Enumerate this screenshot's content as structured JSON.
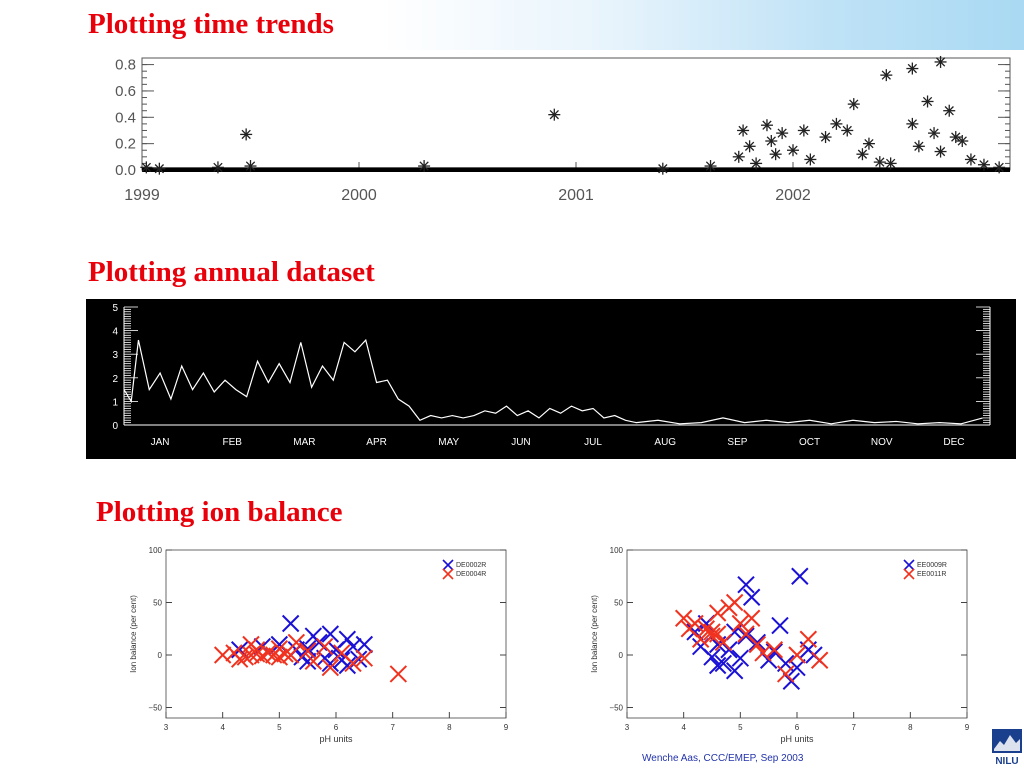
{
  "slide": {
    "heading_time_trends": "Plotting time trends",
    "heading_annual": "Plotting annual dataset",
    "heading_ion_balance": "Plotting ion balance",
    "footer_text": "Wenche Aas, CCC/EMEP, Sep 2003",
    "logo_text": "NILU",
    "accent_color": "#e8000b",
    "series_colors": {
      "blue": "#1a10d6",
      "red": "#f0321e"
    }
  },
  "chart_data": [
    {
      "type": "scatter",
      "title": "",
      "marker": "asterisk",
      "x_tick_labels": [
        "1999",
        "2000",
        "2001",
        "2002"
      ],
      "x_ticks": [
        1999,
        2000,
        2001,
        2002
      ],
      "xlim": [
        1999,
        2003.0
      ],
      "ylim": [
        0,
        0.85
      ],
      "y_tick_labels": [
        "0.0",
        "0.2",
        "0.4",
        "0.6",
        "0.8"
      ],
      "y_ticks": [
        0.0,
        0.2,
        0.4,
        0.6,
        0.8
      ],
      "baseline": 0.0,
      "points": [
        [
          1999.02,
          0.02
        ],
        [
          1999.08,
          0.01
        ],
        [
          1999.35,
          0.02
        ],
        [
          1999.48,
          0.27
        ],
        [
          1999.5,
          0.03
        ],
        [
          2000.3,
          0.03
        ],
        [
          2000.9,
          0.42
        ],
        [
          2001.4,
          0.01
        ],
        [
          2001.62,
          0.03
        ],
        [
          2001.75,
          0.1
        ],
        [
          2001.77,
          0.3
        ],
        [
          2001.8,
          0.18
        ],
        [
          2001.83,
          0.05
        ],
        [
          2001.88,
          0.34
        ],
        [
          2001.9,
          0.22
        ],
        [
          2001.92,
          0.12
        ],
        [
          2001.95,
          0.28
        ],
        [
          2002.0,
          0.15
        ],
        [
          2002.05,
          0.3
        ],
        [
          2002.08,
          0.08
        ],
        [
          2002.15,
          0.25
        ],
        [
          2002.2,
          0.35
        ],
        [
          2002.25,
          0.3
        ],
        [
          2002.28,
          0.5
        ],
        [
          2002.32,
          0.12
        ],
        [
          2002.35,
          0.2
        ],
        [
          2002.4,
          0.06
        ],
        [
          2002.45,
          0.05
        ],
        [
          2002.55,
          0.35
        ],
        [
          2002.58,
          0.18
        ],
        [
          2002.62,
          0.52
        ],
        [
          2002.65,
          0.28
        ],
        [
          2002.68,
          0.14
        ],
        [
          2002.72,
          0.45
        ],
        [
          2002.75,
          0.25
        ],
        [
          2002.78,
          0.22
        ],
        [
          2002.82,
          0.08
        ],
        [
          2002.88,
          0.04
        ],
        [
          2002.95,
          0.02
        ],
        [
          2002.43,
          0.72
        ],
        [
          2002.55,
          0.77
        ],
        [
          2002.68,
          0.82
        ]
      ]
    },
    {
      "type": "line",
      "title": "",
      "x_tick_labels": [
        "JAN",
        "FEB",
        "MAR",
        "APR",
        "MAY",
        "JUN",
        "JUL",
        "AUG",
        "SEP",
        "OCT",
        "NOV",
        "DEC"
      ],
      "ylim": [
        0,
        5
      ],
      "y_tick_labels": [
        "0",
        "1",
        "2",
        "3",
        "4",
        "5"
      ],
      "y_ticks": [
        0,
        1,
        2,
        3,
        4,
        5
      ],
      "x_range_months": [
        0,
        12
      ],
      "series": [
        {
          "values": [
            [
              0.0,
              1.5
            ],
            [
              0.1,
              1.0
            ],
            [
              0.2,
              3.6
            ],
            [
              0.35,
              1.5
            ],
            [
              0.5,
              2.2
            ],
            [
              0.65,
              1.1
            ],
            [
              0.8,
              2.5
            ],
            [
              0.95,
              1.5
            ],
            [
              1.1,
              2.2
            ],
            [
              1.25,
              1.4
            ],
            [
              1.4,
              1.9
            ],
            [
              1.55,
              1.5
            ],
            [
              1.7,
              1.2
            ],
            [
              1.85,
              2.7
            ],
            [
              2.0,
              1.8
            ],
            [
              2.15,
              2.6
            ],
            [
              2.3,
              1.8
            ],
            [
              2.45,
              3.5
            ],
            [
              2.6,
              1.6
            ],
            [
              2.75,
              2.5
            ],
            [
              2.9,
              1.9
            ],
            [
              3.05,
              3.5
            ],
            [
              3.2,
              3.1
            ],
            [
              3.35,
              3.6
            ],
            [
              3.5,
              1.8
            ],
            [
              3.65,
              1.9
            ],
            [
              3.8,
              1.1
            ],
            [
              3.95,
              0.8
            ],
            [
              4.1,
              0.2
            ],
            [
              4.25,
              0.4
            ],
            [
              4.4,
              0.3
            ],
            [
              4.55,
              0.4
            ],
            [
              4.7,
              0.3
            ],
            [
              4.85,
              0.4
            ],
            [
              5.0,
              0.6
            ],
            [
              5.15,
              0.5
            ],
            [
              5.3,
              0.8
            ],
            [
              5.45,
              0.4
            ],
            [
              5.6,
              0.6
            ],
            [
              5.75,
              0.3
            ],
            [
              5.9,
              0.7
            ],
            [
              6.05,
              0.5
            ],
            [
              6.2,
              0.8
            ],
            [
              6.35,
              0.6
            ],
            [
              6.5,
              0.7
            ],
            [
              6.65,
              0.3
            ],
            [
              6.8,
              0.4
            ],
            [
              6.95,
              0.2
            ],
            [
              7.1,
              0.1
            ],
            [
              7.4,
              0.2
            ],
            [
              7.7,
              0.05
            ],
            [
              8.0,
              0.1
            ],
            [
              8.3,
              0.3
            ],
            [
              8.6,
              0.1
            ],
            [
              8.9,
              0.2
            ],
            [
              9.2,
              0.1
            ],
            [
              9.5,
              0.2
            ],
            [
              9.8,
              0.05
            ],
            [
              10.1,
              0.2
            ],
            [
              10.4,
              0.1
            ],
            [
              10.7,
              0.15
            ],
            [
              11.0,
              0.05
            ],
            [
              11.3,
              0.1
            ],
            [
              11.6,
              0.05
            ],
            [
              11.9,
              0.3
            ]
          ]
        }
      ]
    },
    {
      "type": "scatter",
      "title": "",
      "xlabel": "pH units",
      "ylabel": "Ion balance (per cent)",
      "xlim": [
        3,
        9
      ],
      "ylim": [
        -60,
        100
      ],
      "x_tick_labels": [
        "3",
        "4",
        "5",
        "6",
        "7",
        "8",
        "9"
      ],
      "x_ticks": [
        3,
        4,
        5,
        6,
        7,
        8,
        9
      ],
      "y_tick_labels": [
        "−50",
        "0",
        "50",
        "100"
      ],
      "y_ticks": [
        -50,
        0,
        50,
        100
      ],
      "legend_position": "top-right",
      "series": [
        {
          "name": "DE0002R",
          "color": "blue",
          "points": [
            [
              5.2,
              30
            ],
            [
              5.6,
              18
            ],
            [
              5.9,
              20
            ],
            [
              6.2,
              15
            ],
            [
              6.5,
              10
            ],
            [
              6.3,
              8
            ],
            [
              6.0,
              5
            ],
            [
              5.5,
              6
            ],
            [
              5.3,
              5
            ],
            [
              5.8,
              -3
            ],
            [
              6.1,
              -5
            ],
            [
              5.9,
              -8
            ],
            [
              5.4,
              -2
            ],
            [
              6.4,
              -4
            ],
            [
              5.7,
              12
            ],
            [
              4.7,
              8
            ],
            [
              5.0,
              10
            ],
            [
              4.3,
              5
            ],
            [
              6.2,
              -10
            ],
            [
              5.5,
              -6
            ]
          ]
        },
        {
          "name": "DE0004R",
          "color": "red",
          "points": [
            [
              7.1,
              -18
            ],
            [
              4.0,
              0
            ],
            [
              4.2,
              2
            ],
            [
              4.4,
              -2
            ],
            [
              4.5,
              0
            ],
            [
              4.6,
              1
            ],
            [
              4.7,
              -1
            ],
            [
              4.8,
              2
            ],
            [
              4.9,
              0
            ],
            [
              5.0,
              -2
            ],
            [
              5.1,
              1
            ],
            [
              5.2,
              0
            ],
            [
              4.3,
              -4
            ],
            [
              4.6,
              5
            ],
            [
              5.0,
              6
            ],
            [
              5.5,
              4
            ],
            [
              5.8,
              8
            ],
            [
              6.1,
              2
            ],
            [
              6.3,
              -8
            ],
            [
              5.9,
              -12
            ],
            [
              5.3,
              12
            ],
            [
              4.5,
              10
            ],
            [
              5.6,
              -6
            ],
            [
              6.5,
              -3
            ]
          ]
        }
      ]
    },
    {
      "type": "scatter",
      "title": "",
      "xlabel": "pH units",
      "ylabel": "Ion balance (per cent)",
      "xlim": [
        3,
        9
      ],
      "ylim": [
        -60,
        100
      ],
      "x_tick_labels": [
        "3",
        "4",
        "5",
        "6",
        "7",
        "8",
        "9"
      ],
      "x_ticks": [
        3,
        4,
        5,
        6,
        7,
        8,
        9
      ],
      "y_tick_labels": [
        "−50",
        "0",
        "50",
        "100"
      ],
      "y_ticks": [
        -50,
        0,
        50,
        100
      ],
      "legend_position": "top-right",
      "series": [
        {
          "name": "EE0009R",
          "color": "blue",
          "points": [
            [
              6.05,
              75
            ],
            [
              5.2,
              55
            ],
            [
              5.1,
              67
            ],
            [
              5.7,
              28
            ],
            [
              4.2,
              22
            ],
            [
              4.4,
              30
            ],
            [
              4.6,
              10
            ],
            [
              4.8,
              5
            ],
            [
              4.5,
              -2
            ],
            [
              4.7,
              -8
            ],
            [
              4.9,
              -15
            ],
            [
              5.0,
              -3
            ],
            [
              5.3,
              12
            ],
            [
              5.5,
              -5
            ],
            [
              5.8,
              -8
            ],
            [
              6.0,
              -12
            ],
            [
              6.2,
              5
            ],
            [
              6.3,
              0
            ],
            [
              4.3,
              8
            ],
            [
              4.6,
              -10
            ],
            [
              5.1,
              18
            ],
            [
              5.9,
              -25
            ],
            [
              5.6,
              3
            ],
            [
              4.9,
              22
            ]
          ]
        },
        {
          "name": "EE0011R",
          "color": "red",
          "points": [
            [
              4.0,
              35
            ],
            [
              4.2,
              30
            ],
            [
              4.4,
              25
            ],
            [
              4.6,
              40
            ],
            [
              4.8,
              45
            ],
            [
              4.9,
              50
            ],
            [
              5.0,
              30
            ],
            [
              4.3,
              15
            ],
            [
              4.5,
              18
            ],
            [
              4.7,
              12
            ],
            [
              5.1,
              20
            ],
            [
              5.3,
              10
            ],
            [
              4.1,
              25
            ],
            [
              6.2,
              15
            ],
            [
              6.0,
              0
            ],
            [
              5.8,
              -18
            ],
            [
              6.4,
              -5
            ],
            [
              5.6,
              5
            ],
            [
              5.2,
              35
            ],
            [
              4.6,
              20
            ],
            [
              5.4,
              2
            ],
            [
              4.5,
              22
            ]
          ]
        }
      ]
    }
  ]
}
